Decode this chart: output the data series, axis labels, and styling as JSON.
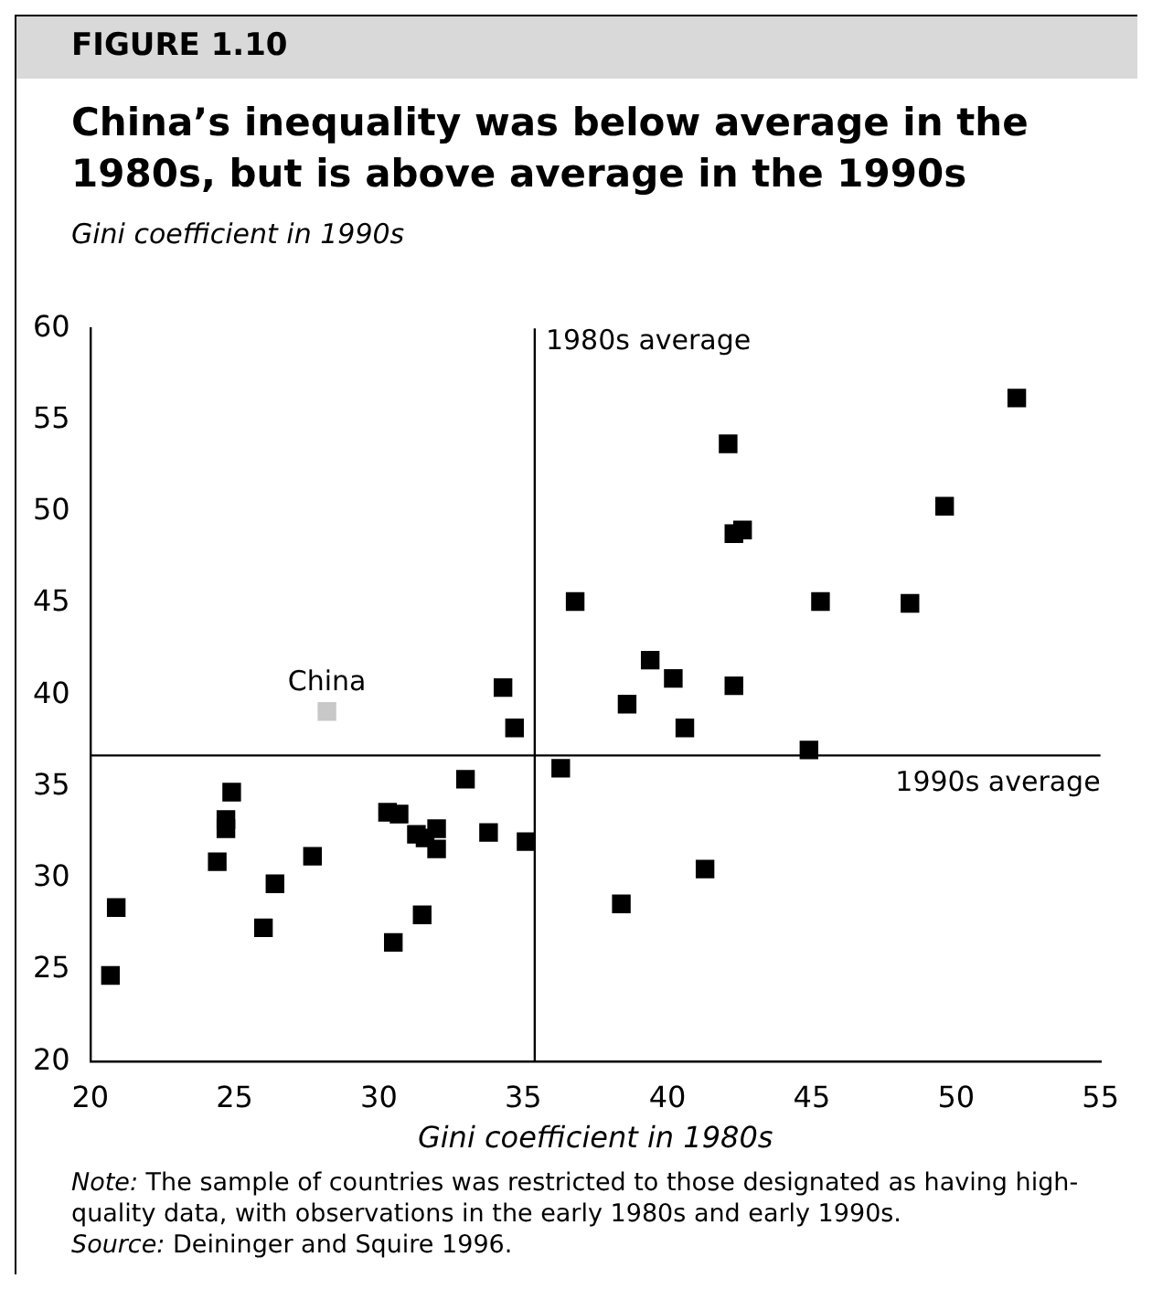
{
  "chart_data": {
    "type": "scatter",
    "title": "China’s inequality was below average in the 1980s, but is above average in the 1990s",
    "xlabel": "Gini coefficient in 1980s",
    "ylabel": "Gini coefficient in 1990s",
    "xlim": [
      20,
      55
    ],
    "xticks": [
      20,
      25,
      30,
      35,
      40,
      45,
      50,
      55
    ],
    "ylim": [
      20,
      60
    ],
    "yticks": [
      20,
      25,
      30,
      35,
      40,
      45,
      50,
      55,
      60
    ],
    "grid": false,
    "legend": false,
    "marker": "square",
    "series": [
      {
        "color": "#000000",
        "x": [
          20.7,
          20.9,
          24.4,
          24.7,
          24.7,
          24.9,
          26.0,
          26.4,
          27.7,
          30.3,
          30.7,
          30.5,
          31.5,
          31.3,
          31.6,
          32.0,
          32.0,
          33.0,
          33.8,
          35.1,
          34.3,
          34.7,
          36.3,
          36.8,
          52.1,
          42.1,
          42.3,
          42.6,
          49.6,
          45.3,
          48.4,
          39.4,
          40.2,
          38.6,
          42.3,
          40.6,
          44.9,
          41.3,
          38.4
        ],
        "values": [
          24.7,
          28.4,
          30.9,
          33.2,
          32.7,
          34.7,
          27.3,
          29.7,
          31.2,
          33.6,
          33.5,
          26.5,
          28.0,
          32.4,
          32.2,
          32.7,
          31.6,
          35.4,
          32.5,
          32.0,
          40.4,
          38.2,
          36.0,
          45.1,
          56.2,
          53.7,
          48.8,
          49.0,
          50.3,
          45.1,
          45.0,
          41.9,
          40.9,
          39.5,
          40.5,
          38.2,
          37.0,
          30.5,
          28.6
        ]
      },
      {
        "color": "#c8c8c8",
        "x": [
          28.2
        ],
        "values": [
          39.1
        ]
      }
    ],
    "ref_lines": [
      {
        "axis": "x",
        "value": 35.4,
        "label": "1980s average",
        "color": "#000000"
      },
      {
        "axis": "y",
        "value": 36.7,
        "label": "1990s average",
        "color": "#000000"
      }
    ],
    "annotations": [
      "FIGURE 1.10",
      {
        "text": "China",
        "x": 28.2,
        "y": 39.1
      },
      "Note: The sample of countries was restricted to those designated as having high-quality data, with observations in the early 1980s and early 1990s.",
      "Source: Deininger and Squire 1996."
    ]
  }
}
